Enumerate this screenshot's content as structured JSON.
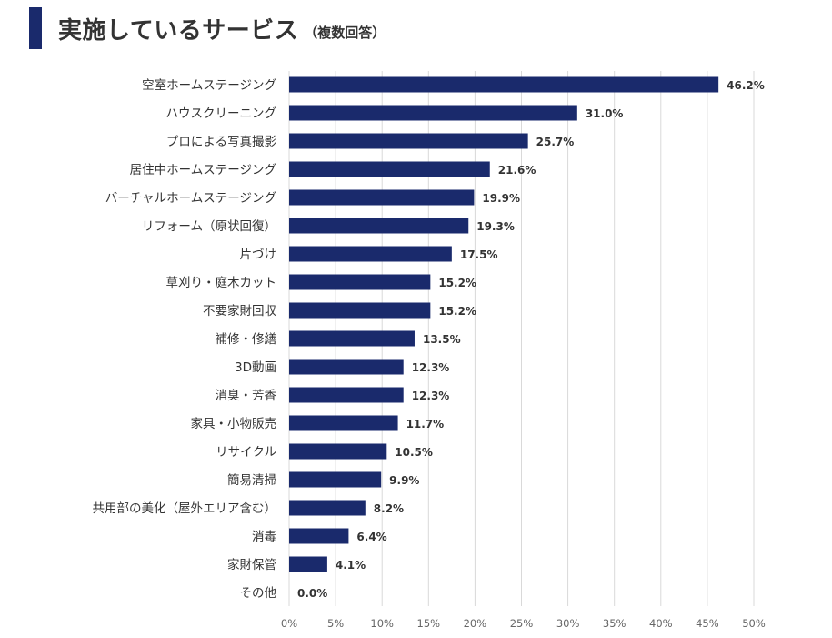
{
  "header": {
    "title": "実施しているサービス",
    "subtitle": "（複数回答）",
    "accent_color": "#1a2a6c"
  },
  "chart_data": {
    "type": "bar",
    "orientation": "horizontal",
    "title": "実施しているサービス（複数回答）",
    "bar_color": "#1a2a6c",
    "categories": [
      "空室ホームステージング",
      "ハウスクリーニング",
      "プロによる写真撮影",
      "居住中ホームステージング",
      "バーチャルホームステージング",
      "リフォーム（原状回復）",
      "片づけ",
      "草刈り・庭木カット",
      "不要家財回収",
      "補修・修繕",
      "3D動画",
      "消臭・芳香",
      "家具・小物販売",
      "リサイクル",
      "簡易清掃",
      "共用部の美化（屋外エリア含む）",
      "消毒",
      "家財保管",
      "その他"
    ],
    "values": [
      46.2,
      31.0,
      25.7,
      21.6,
      19.9,
      19.3,
      17.5,
      15.2,
      15.2,
      13.5,
      12.3,
      12.3,
      11.7,
      10.5,
      9.9,
      8.2,
      6.4,
      4.1,
      0.0
    ],
    "value_labels": [
      "46.2%",
      "31.0%",
      "25.7%",
      "21.6%",
      "19.9%",
      "19.3%",
      "17.5%",
      "15.2%",
      "15.2%",
      "13.5%",
      "12.3%",
      "12.3%",
      "11.7%",
      "10.5%",
      "9.9%",
      "8.2%",
      "6.4%",
      "4.1%",
      "0.0%"
    ],
    "xlim": [
      0,
      50
    ],
    "xticks": [
      0,
      5,
      10,
      15,
      20,
      25,
      30,
      35,
      40,
      45,
      50
    ],
    "xtick_labels": [
      "0%",
      "5%",
      "10%",
      "15%",
      "20%",
      "25%",
      "30%",
      "35%",
      "40%",
      "45%",
      "50%"
    ],
    "grid": true,
    "xlabel": "",
    "ylabel": ""
  }
}
